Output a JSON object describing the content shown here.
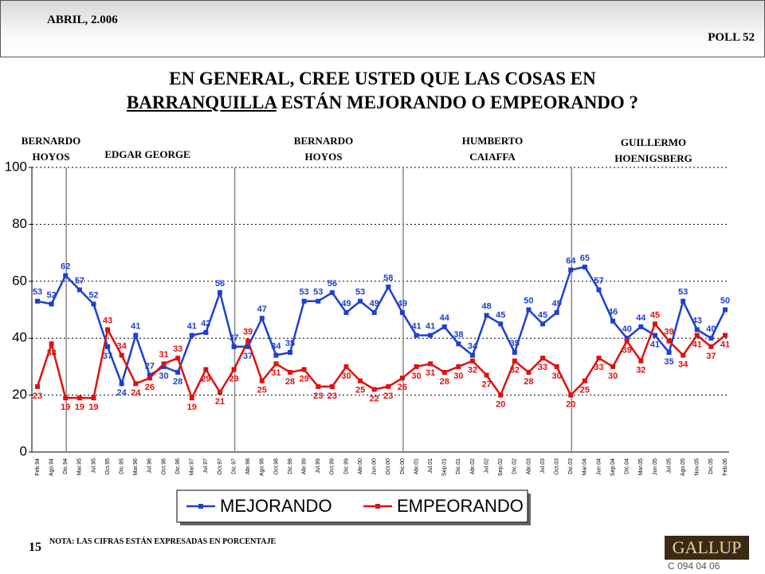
{
  "header": {
    "date": "ABRIL, 2.006",
    "poll": "POLL 52"
  },
  "title": {
    "line1": "EN GENERAL, CREE USTED QUE LAS COSAS EN",
    "line2_underlined": "BARRANQUILLA",
    "line2_rest": " ESTÁN MEJORANDO O EMPEORANDO ?"
  },
  "chart_data": {
    "type": "line",
    "categories": [
      "Feb.94",
      "Ago.94",
      "Dic.94",
      "Mar.95",
      "Jul.95",
      "Oct.95",
      "Dic.95",
      "Mar.96",
      "Jul.96",
      "Oct.96",
      "Dic.96",
      "Mar.97",
      "Jul.97",
      "Oct.97",
      "Dic.97",
      "Abr.98",
      "Ago.98",
      "Oct.98",
      "Dic.98",
      "Abr.99",
      "Jul.99",
      "Oct.99",
      "Dic.99",
      "Abr.00",
      "Jun.00",
      "Oct.00",
      "Dic.00",
      "Abr.01",
      "Jul.01",
      "Sep.01",
      "Dic.01",
      "Abr.02",
      "Jul.02",
      "Sep.02",
      "Dic.02",
      "Abr.03",
      "Jul.03",
      "Oct.03",
      "Dic.03",
      "Mar.04",
      "Jun.04",
      "Sep.04",
      "Dic.04",
      "Mar.05",
      "Jun.05",
      "Jul.05",
      "Ago.05",
      "Nov.05",
      "Dic.05",
      "Feb.06"
    ],
    "series": [
      {
        "name": "MEJORANDO",
        "color": "#1f3fd0",
        "values": [
          53,
          52,
          62,
          57,
          52,
          37,
          24,
          41,
          27,
          30,
          28,
          41,
          42,
          56,
          37,
          37,
          47,
          34,
          35,
          53,
          53,
          56,
          49,
          53,
          49,
          58,
          49,
          41,
          41,
          44,
          38,
          34,
          48,
          45,
          35,
          50,
          45,
          49,
          64,
          65,
          57,
          46,
          40,
          44,
          41,
          35,
          53,
          43,
          40,
          50
        ]
      },
      {
        "name": "EMPEORANDO",
        "color": "#e01010",
        "values": [
          23,
          38,
          19,
          19,
          19,
          43,
          34,
          24,
          26,
          31,
          33,
          19,
          29,
          21,
          29,
          39,
          25,
          31,
          28,
          29,
          23,
          23,
          30,
          25,
          22,
          23,
          26,
          30,
          31,
          28,
          30,
          32,
          27,
          20,
          32,
          28,
          33,
          30,
          20,
          25,
          33,
          30,
          39,
          32,
          45,
          39,
          34,
          41,
          37,
          41
        ]
      }
    ],
    "ylim": [
      0,
      100
    ],
    "yticks": [
      0,
      20,
      40,
      60,
      80,
      100
    ],
    "grid": true,
    "annotations": [
      {
        "lines": [
          "BERNARDO",
          "HOYOS"
        ]
      },
      {
        "lines": [
          "EDGAR GEORGE"
        ]
      },
      {
        "lines": [
          "BERNARDO",
          "HOYOS"
        ]
      },
      {
        "lines": [
          "HUMBERTO",
          "CAIAFFA"
        ]
      },
      {
        "lines": [
          "GUILLERMO",
          "HOENIGSBERG"
        ]
      }
    ]
  },
  "footer": {
    "page": "15",
    "note": "NOTA: LAS CIFRAS ESTÁN EXPRESADAS EN PORCENTAJE",
    "logo": "GALLUP",
    "code": "C 094 04 06"
  }
}
